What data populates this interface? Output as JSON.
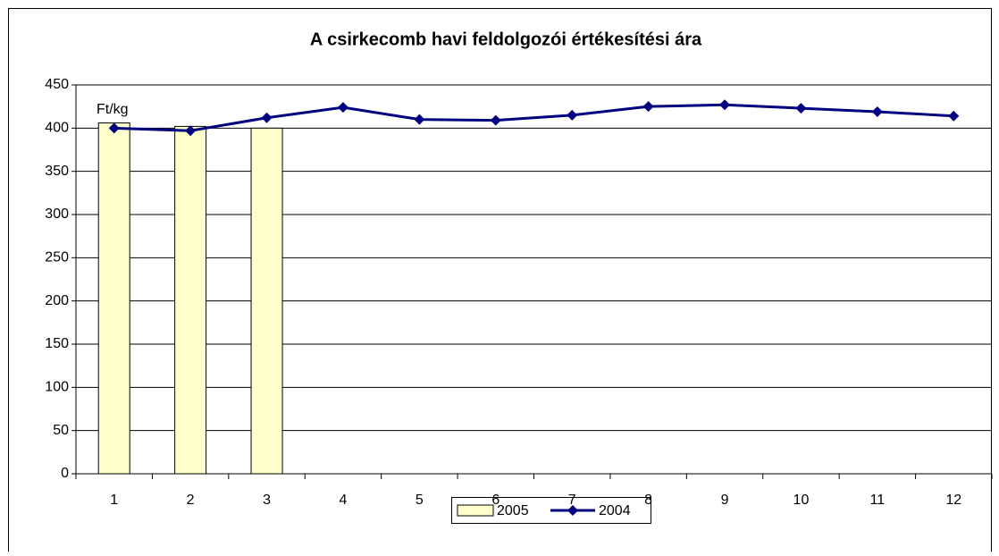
{
  "chart_data": {
    "type": "bar+line",
    "title": "A csirkecomb havi feldolgozói értékesítési ára",
    "y_label": "Ft/kg",
    "categories": [
      "1",
      "2",
      "3",
      "4",
      "5",
      "6",
      "7",
      "8",
      "9",
      "10",
      "11",
      "12"
    ],
    "series": [
      {
        "name": "2005",
        "type": "bar",
        "color": "#ffffcc",
        "values": [
          406,
          402,
          400,
          null,
          null,
          null,
          null,
          null,
          null,
          null,
          null,
          null
        ]
      },
      {
        "name": "2004",
        "type": "line",
        "color": "#000080",
        "values": [
          400,
          397,
          412,
          424,
          410,
          409,
          415,
          425,
          427,
          423,
          419,
          414
        ]
      }
    ],
    "ylim": [
      0,
      450
    ],
    "yticks": [
      0,
      50,
      100,
      150,
      200,
      250,
      300,
      350,
      400,
      450
    ],
    "grid": true,
    "legend": "bottom"
  }
}
